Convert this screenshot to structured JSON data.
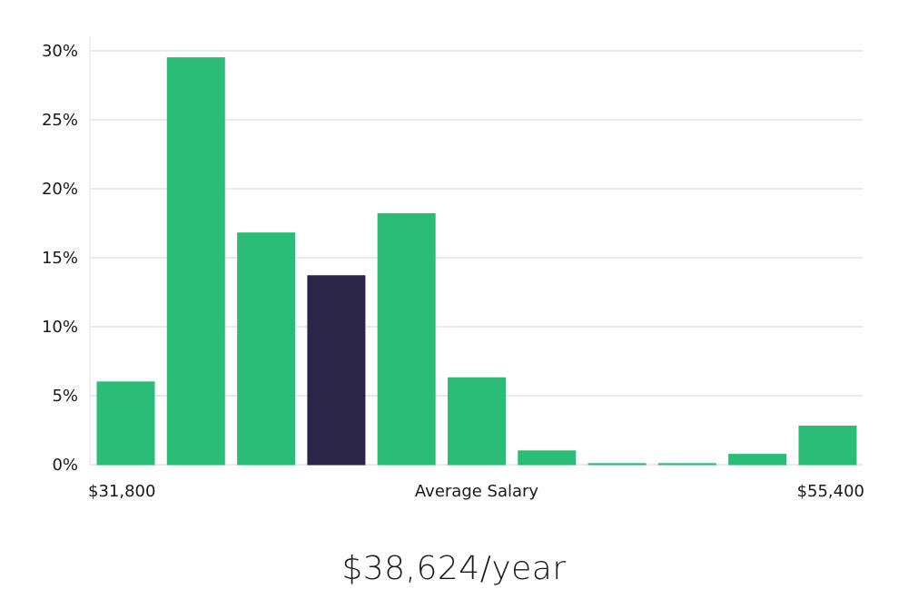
{
  "chart_data": {
    "type": "bar",
    "title": "",
    "xlabel": "Average Salary",
    "ylabel": "",
    "x_min_label": "$31,800",
    "x_max_label": "$55,400",
    "ylim": [
      0,
      31
    ],
    "yticks": [
      0,
      5,
      10,
      15,
      20,
      25,
      30
    ],
    "ytick_labels": [
      "0%",
      "5%",
      "10%",
      "15%",
      "20%",
      "25%",
      "30%"
    ],
    "values": [
      6.0,
      29.5,
      16.8,
      13.7,
      18.2,
      6.3,
      1.0,
      0.05,
      0.05,
      0.75,
      2.8
    ],
    "highlight_index": 3,
    "colors": {
      "bar": "#2bbd77",
      "highlight": "#2a2546",
      "grid": "#e3e3e8"
    },
    "grid": true
  },
  "summary": {
    "salary_text": "$38,624/year"
  }
}
